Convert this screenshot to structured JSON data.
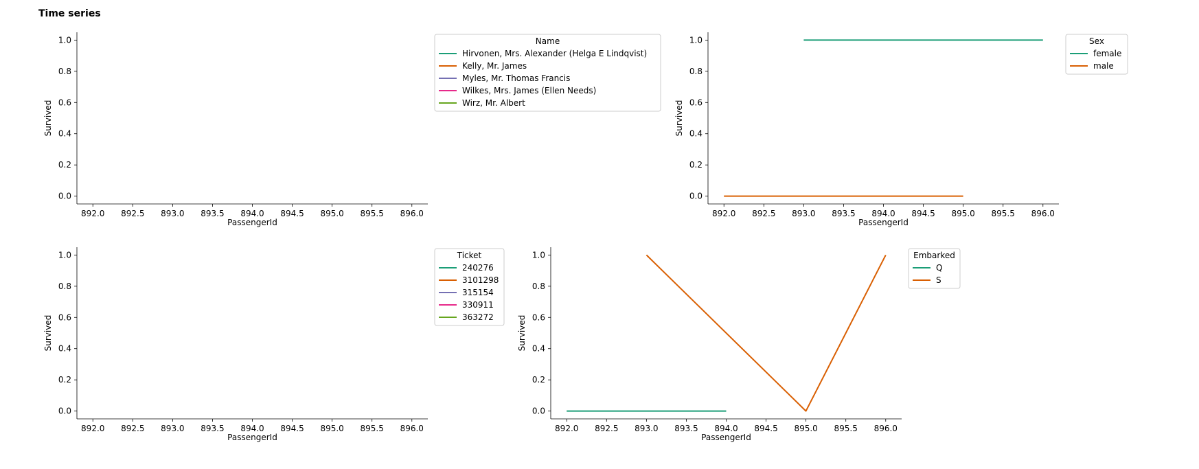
{
  "page": {
    "title": "Time series"
  },
  "chart_data": [
    {
      "type": "line",
      "xlabel": "PassengerId",
      "ylabel": "Survived",
      "xlim": [
        891.8,
        896.2
      ],
      "ylim": [
        -0.05,
        1.05
      ],
      "xticks": [
        "892.0",
        "892.5",
        "893.0",
        "893.5",
        "894.0",
        "894.5",
        "895.0",
        "895.5",
        "896.0"
      ],
      "yticks": [
        "0.0",
        "0.2",
        "0.4",
        "0.6",
        "0.8",
        "1.0"
      ],
      "legend": {
        "title": "Name",
        "placement": "outside-top-right",
        "entries": [
          {
            "label": "Hirvonen, Mrs. Alexander (Helga E Lindqvist)",
            "color": "#1b9e77"
          },
          {
            "label": "Kelly, Mr. James",
            "color": "#d95f02"
          },
          {
            "label": "Myles, Mr. Thomas Francis",
            "color": "#7570b3"
          },
          {
            "label": "Wilkes, Mrs. James (Ellen Needs)",
            "color": "#e7298a"
          },
          {
            "label": "Wirz, Mr. Albert",
            "color": "#66a61e"
          }
        ]
      },
      "series": []
    },
    {
      "type": "line",
      "xlabel": "PassengerId",
      "ylabel": "Survived",
      "xlim": [
        891.8,
        896.2
      ],
      "ylim": [
        -0.05,
        1.05
      ],
      "xticks": [
        "892.0",
        "892.5",
        "893.0",
        "893.5",
        "894.0",
        "894.5",
        "895.0",
        "895.5",
        "896.0"
      ],
      "yticks": [
        "0.0",
        "0.2",
        "0.4",
        "0.6",
        "0.8",
        "1.0"
      ],
      "legend": {
        "title": "Sex",
        "placement": "outside-top-right",
        "entries": [
          {
            "label": "female",
            "color": "#1b9e77"
          },
          {
            "label": "male",
            "color": "#d95f02"
          }
        ]
      },
      "series": [
        {
          "name": "female",
          "color": "#1b9e77",
          "x": [
            893,
            896
          ],
          "y": [
            1,
            1
          ]
        },
        {
          "name": "male",
          "color": "#d95f02",
          "x": [
            892,
            895
          ],
          "y": [
            0,
            0
          ]
        }
      ]
    },
    {
      "type": "line",
      "xlabel": "PassengerId",
      "ylabel": "Survived",
      "xlim": [
        891.8,
        896.2
      ],
      "ylim": [
        -0.05,
        1.05
      ],
      "xticks": [
        "892.0",
        "892.5",
        "893.0",
        "893.5",
        "894.0",
        "894.5",
        "895.0",
        "895.5",
        "896.0"
      ],
      "yticks": [
        "0.0",
        "0.2",
        "0.4",
        "0.6",
        "0.8",
        "1.0"
      ],
      "legend": {
        "title": "Ticket",
        "placement": "outside-top-right",
        "entries": [
          {
            "label": "240276",
            "color": "#1b9e77"
          },
          {
            "label": "3101298",
            "color": "#d95f02"
          },
          {
            "label": "315154",
            "color": "#7570b3"
          },
          {
            "label": "330911",
            "color": "#e7298a"
          },
          {
            "label": "363272",
            "color": "#66a61e"
          }
        ]
      },
      "series": []
    },
    {
      "type": "line",
      "xlabel": "PassengerId",
      "ylabel": "Survived",
      "xlim": [
        891.8,
        896.2
      ],
      "ylim": [
        -0.05,
        1.05
      ],
      "xticks": [
        "892.0",
        "892.5",
        "893.0",
        "893.5",
        "894.0",
        "894.5",
        "895.0",
        "895.5",
        "896.0"
      ],
      "yticks": [
        "0.0",
        "0.2",
        "0.4",
        "0.6",
        "0.8",
        "1.0"
      ],
      "legend": {
        "title": "Embarked",
        "placement": "outside-top-right",
        "entries": [
          {
            "label": "Q",
            "color": "#1b9e77"
          },
          {
            "label": "S",
            "color": "#d95f02"
          }
        ]
      },
      "series": [
        {
          "name": "Q",
          "color": "#1b9e77",
          "x": [
            892,
            894
          ],
          "y": [
            0,
            0
          ]
        },
        {
          "name": "S",
          "color": "#d95f02",
          "x": [
            893,
            895,
            896
          ],
          "y": [
            1,
            0,
            1
          ]
        }
      ]
    }
  ]
}
